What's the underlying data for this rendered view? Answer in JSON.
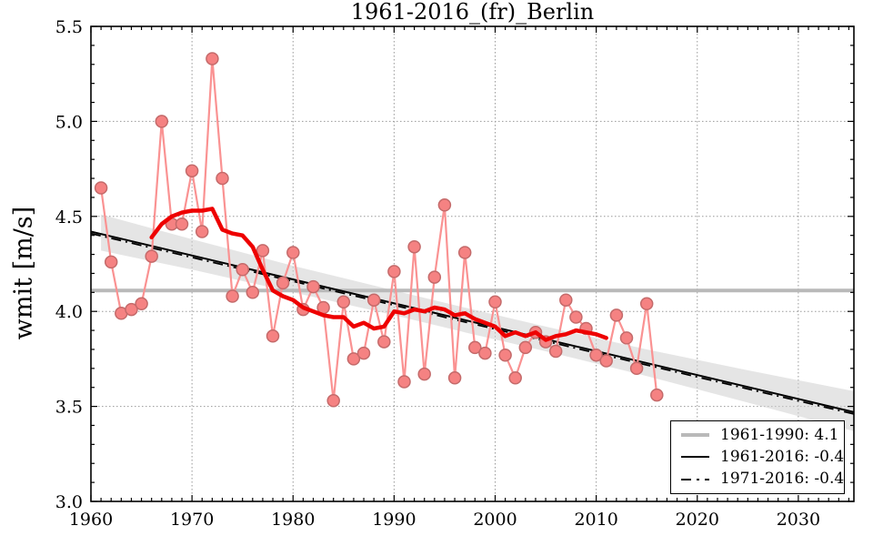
{
  "title": "1961-2016_(fr)_Berlin",
  "ylabel": "wmit [m/s]",
  "legend": {
    "position": "lower-right",
    "entries": [
      {
        "id": "reference-1961-1990",
        "sample": "gray-thick",
        "label": "1961-1990: 4.1"
      },
      {
        "id": "trend-1961-2016",
        "sample": "black-solid",
        "label": "1961-2016: -0.4"
      },
      {
        "id": "trend-1971-2016",
        "sample": "black-dashdot",
        "label": "1971-2016: -0.4"
      }
    ]
  },
  "colors": {
    "annual_marker_fill": "#f58282",
    "annual_marker_edge": "#c46a6a",
    "annual_line": "#fa9292",
    "running_mean": "#ee0000",
    "trend": "#000000",
    "reference_line": "#b9b9b9",
    "confidence_band": "#cfcfcf",
    "grid": "#999999",
    "axes": "#000000",
    "background": "#ffffff"
  },
  "chart_data": {
    "type": "line",
    "title": "1961-2016_(fr)_Berlin",
    "xlabel": "",
    "ylabel": "wmit [m/s]",
    "xlim": [
      1960,
      2035.5
    ],
    "ylim": [
      3.0,
      5.5
    ],
    "xticks": [
      1960,
      1970,
      1980,
      1990,
      2000,
      2010,
      2020,
      2030
    ],
    "yticks": [
      3.0,
      3.5,
      4.0,
      4.5,
      5.0,
      5.5
    ],
    "x_minor_step": 1,
    "y_minor_step": 0.1,
    "grid": true,
    "legend_position": "lower right",
    "series": [
      {
        "name": "annual_values",
        "type": "scatter_line",
        "x": [
          1961,
          1962,
          1963,
          1964,
          1965,
          1966,
          1967,
          1968,
          1969,
          1970,
          1971,
          1972,
          1973,
          1974,
          1975,
          1976,
          1977,
          1978,
          1979,
          1980,
          1981,
          1982,
          1983,
          1984,
          1985,
          1986,
          1987,
          1988,
          1989,
          1990,
          1991,
          1992,
          1993,
          1994,
          1995,
          1996,
          1997,
          1998,
          1999,
          2000,
          2001,
          2002,
          2003,
          2004,
          2005,
          2006,
          2007,
          2008,
          2009,
          2010,
          2011,
          2012,
          2013,
          2014,
          2015,
          2016
        ],
        "y": [
          4.65,
          4.26,
          3.99,
          4.01,
          4.04,
          4.29,
          5.0,
          4.46,
          4.46,
          4.74,
          4.42,
          5.33,
          4.7,
          4.08,
          4.22,
          4.1,
          4.32,
          3.87,
          4.15,
          4.31,
          4.01,
          4.13,
          4.02,
          3.53,
          4.05,
          3.75,
          3.78,
          4.06,
          3.84,
          4.21,
          3.63,
          4.34,
          3.67,
          4.18,
          4.56,
          3.65,
          4.31,
          3.81,
          3.78,
          4.05,
          3.77,
          3.65,
          3.81,
          3.89,
          3.84,
          3.79,
          4.06,
          3.97,
          3.91,
          3.77,
          3.74,
          3.98,
          3.86,
          3.7,
          4.04,
          3.56
        ]
      },
      {
        "name": "running_mean",
        "type": "line",
        "x": [
          1966,
          1967,
          1968,
          1969,
          1970,
          1971,
          1972,
          1973,
          1974,
          1975,
          1976,
          1977,
          1978,
          1979,
          1980,
          1981,
          1982,
          1983,
          1984,
          1985,
          1986,
          1987,
          1988,
          1989,
          1990,
          1991,
          1992,
          1993,
          1994,
          1995,
          1996,
          1997,
          1998,
          1999,
          2000,
          2001,
          2002,
          2003,
          2004,
          2005,
          2006,
          2007,
          2008,
          2009,
          2010,
          2011
        ],
        "y": [
          4.39,
          4.46,
          4.5,
          4.52,
          4.53,
          4.53,
          4.54,
          4.43,
          4.41,
          4.4,
          4.34,
          4.22,
          4.11,
          4.08,
          4.06,
          4.02,
          4.0,
          3.98,
          3.97,
          3.97,
          3.92,
          3.94,
          3.91,
          3.92,
          4.0,
          3.99,
          4.01,
          4.0,
          4.02,
          4.01,
          3.98,
          3.99,
          3.96,
          3.94,
          3.92,
          3.87,
          3.89,
          3.87,
          3.89,
          3.85,
          3.87,
          3.88,
          3.9,
          3.89,
          3.88,
          3.86
        ]
      },
      {
        "name": "reference_1961_1990",
        "type": "hline",
        "y": 4.11,
        "label": "1961-1990: 4.1"
      },
      {
        "name": "trend_1961_2016",
        "type": "trend",
        "style": "solid",
        "x": [
          1960,
          2035.5
        ],
        "y": [
          4.42,
          3.47
        ],
        "label": "1961-2016: -0.4"
      },
      {
        "name": "trend_1971_2016",
        "type": "trend",
        "style": "dashdot",
        "x": [
          1960,
          2035.5
        ],
        "y": [
          4.41,
          3.46
        ],
        "label": "1971-2016: -0.4"
      },
      {
        "name": "confidence_band",
        "type": "band",
        "x": [
          1961,
          1970,
          1980,
          1990,
          1997,
          2005,
          2015,
          2025,
          2035.5
        ],
        "upper": [
          4.51,
          4.38,
          4.24,
          4.11,
          4.02,
          3.92,
          3.8,
          3.69,
          3.58
        ],
        "lower": [
          4.32,
          4.22,
          4.1,
          3.98,
          3.89,
          3.79,
          3.66,
          3.52,
          3.37
        ]
      }
    ]
  }
}
